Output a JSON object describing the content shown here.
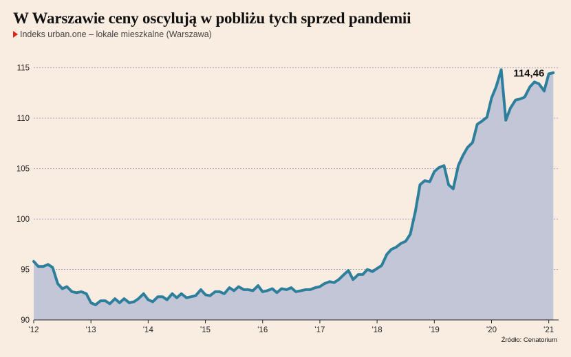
{
  "header": {
    "title": "W Warszawie ceny oscylują w pobliżu tych sprzed pandemii",
    "subtitle": "Indeks urban.one – lokale mieszkalne (Warszawa)"
  },
  "footer": {
    "source": "Źródło: Cenatorium"
  },
  "colors": {
    "background": "#f9ede2",
    "line": "#2e7f9c",
    "area": "#c2c6d6",
    "grid": "#a9a9c9",
    "marker": "#e2231a"
  },
  "chart_data": {
    "type": "area",
    "title": "W Warszawie ceny oscylują w pobliżu tych sprzed pandemii",
    "subtitle": "Indeks urban.one – lokale mieszkalne (Warszawa)",
    "xlabel": "",
    "ylabel": "",
    "ylim": [
      90,
      116
    ],
    "xlim": [
      2012.0,
      2021.1
    ],
    "grid": "horizontal dashed",
    "legend": "none",
    "yticks": [
      90,
      95,
      100,
      105,
      110,
      115
    ],
    "ytick_labels": [
      "90",
      "95",
      "100",
      "105",
      "110",
      "115"
    ],
    "xticks": [
      2012,
      2013,
      2014,
      2015,
      2016,
      2017,
      2018,
      2019,
      2020,
      2021
    ],
    "xtick_labels": [
      "'12",
      "'13",
      "'14",
      "'15",
      "'16",
      "'17",
      "'18",
      "'19",
      "'20",
      "'21"
    ],
    "annotation": {
      "text": "114,46",
      "x": 2021.08,
      "y": 114.46
    },
    "series": [
      {
        "x": [
          2012.0,
          2012.08,
          2012.17,
          2012.25,
          2012.33,
          2012.42,
          2012.5,
          2012.58,
          2012.67,
          2012.75,
          2012.83,
          2012.92,
          2013.0,
          2013.08,
          2013.17,
          2013.25,
          2013.33,
          2013.42,
          2013.5,
          2013.58,
          2013.67,
          2013.75,
          2013.83,
          2013.92,
          2014.0,
          2014.08,
          2014.17,
          2014.25,
          2014.33,
          2014.42,
          2014.5,
          2014.58,
          2014.67,
          2014.75,
          2014.83,
          2014.92,
          2015.0,
          2015.08,
          2015.17,
          2015.25,
          2015.33,
          2015.42,
          2015.5,
          2015.58,
          2015.67,
          2015.75,
          2015.83,
          2015.92,
          2016.0,
          2016.08,
          2016.17,
          2016.25,
          2016.33,
          2016.42,
          2016.5,
          2016.58,
          2016.67,
          2016.75,
          2016.83,
          2016.92,
          2017.0,
          2017.08,
          2017.17,
          2017.25,
          2017.33,
          2017.42,
          2017.5,
          2017.58,
          2017.67,
          2017.75,
          2017.83,
          2017.92,
          2018.0,
          2018.08,
          2018.17,
          2018.25,
          2018.33,
          2018.42,
          2018.5,
          2018.58,
          2018.67,
          2018.75,
          2018.83,
          2018.92,
          2019.0,
          2019.08,
          2019.17,
          2019.25,
          2019.33,
          2019.42,
          2019.5,
          2019.58,
          2019.67,
          2019.75,
          2019.83,
          2019.92,
          2020.0,
          2020.08,
          2020.17,
          2020.25,
          2020.33,
          2020.42,
          2020.5,
          2020.58,
          2020.67,
          2020.75,
          2020.83,
          2020.92,
          2021.0,
          2021.08
        ],
        "y": [
          95.8,
          95.3,
          95.3,
          95.5,
          95.2,
          93.6,
          93.1,
          93.3,
          92.8,
          92.7,
          92.8,
          92.6,
          91.7,
          91.5,
          91.9,
          91.9,
          91.6,
          92.1,
          91.7,
          92.1,
          91.7,
          91.8,
          92.1,
          92.6,
          92.0,
          91.8,
          92.3,
          92.3,
          92.0,
          92.6,
          92.2,
          92.6,
          92.2,
          92.3,
          92.4,
          93.0,
          92.5,
          92.4,
          92.8,
          92.8,
          92.6,
          93.2,
          92.9,
          93.3,
          93.0,
          93.0,
          92.9,
          93.4,
          92.8,
          92.9,
          93.1,
          92.7,
          93.1,
          93.0,
          93.2,
          92.8,
          92.9,
          93.0,
          93.0,
          93.2,
          93.3,
          93.6,
          93.8,
          93.7,
          94.0,
          94.5,
          94.9,
          94.0,
          94.5,
          94.5,
          95.0,
          94.8,
          95.1,
          95.4,
          96.5,
          97.0,
          97.2,
          97.6,
          97.8,
          98.5,
          100.8,
          103.4,
          103.8,
          103.7,
          104.7,
          105.1,
          105.3,
          103.4,
          103.0,
          105.3,
          106.3,
          107.1,
          107.6,
          109.4,
          109.7,
          110.1,
          112.0,
          113.1,
          114.8,
          109.8,
          111.0,
          111.8,
          111.9,
          112.1,
          113.1,
          113.6,
          113.4,
          112.7,
          114.4,
          114.5
        ]
      }
    ]
  }
}
